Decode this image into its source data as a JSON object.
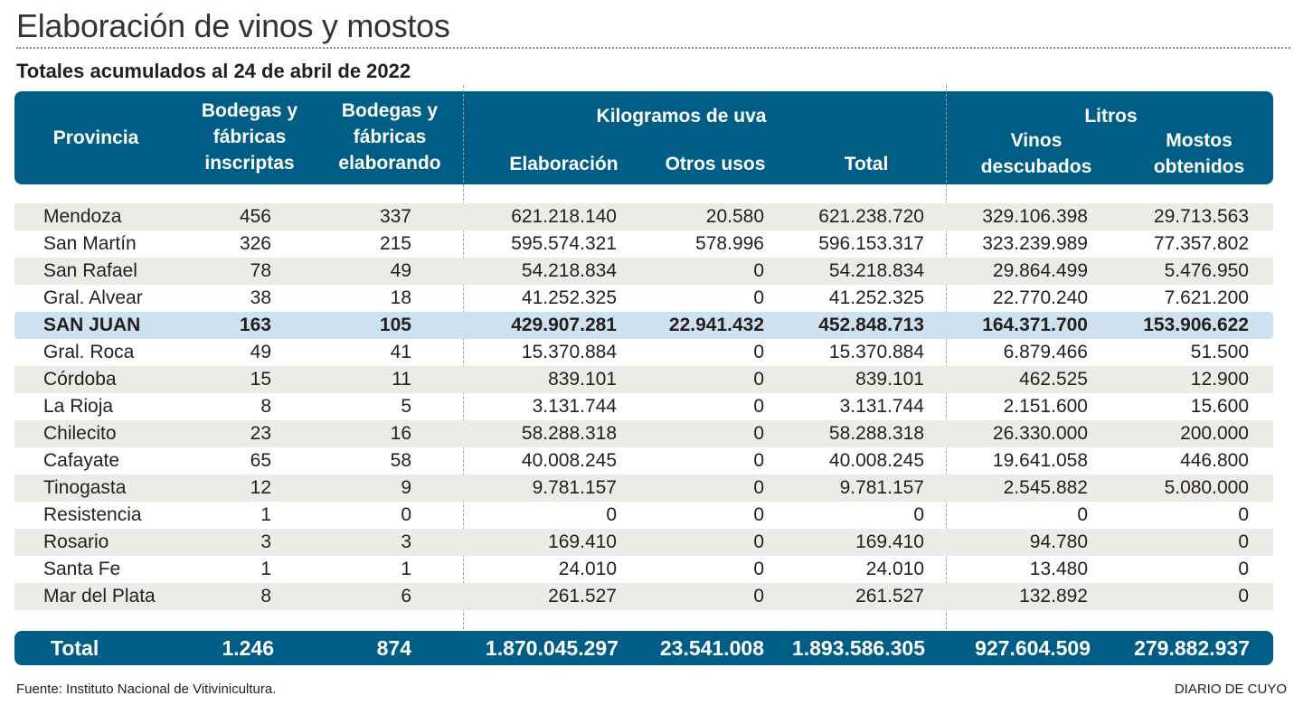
{
  "title": "Elaboración de vinos y mostos",
  "subtitle": "Totales acumulados al 24 de abril de 2022",
  "header": {
    "provincia": "Provincia",
    "bodegas_inscriptas": [
      "Bodegas y",
      "fábricas",
      "inscriptas"
    ],
    "bodegas_elaborando": [
      "Bodegas y",
      "fábricas",
      "elaborando"
    ],
    "kg_group": "Kilogramos de uva",
    "elaboracion": "Elaboración",
    "otros_usos": "Otros usos",
    "total": "Total",
    "litros_group": "Litros",
    "vinos": [
      "Vinos",
      "descubados"
    ],
    "mostos": [
      "Mostos",
      "obtenidos"
    ]
  },
  "rows": [
    {
      "provincia": "Mendoza",
      "inscriptas": "456",
      "elaborando": "337",
      "elaboracion": "621.218.140",
      "otros": "20.580",
      "total": "621.238.720",
      "vinos": "329.106.398",
      "mostos": "29.713.563"
    },
    {
      "provincia": "San Martín",
      "inscriptas": "326",
      "elaborando": "215",
      "elaboracion": "595.574.321",
      "otros": "578.996",
      "total": "596.153.317",
      "vinos": "323.239.989",
      "mostos": "77.357.802"
    },
    {
      "provincia": "San Rafael",
      "inscriptas": "78",
      "elaborando": "49",
      "elaboracion": "54.218.834",
      "otros": "0",
      "total": "54.218.834",
      "vinos": "29.864.499",
      "mostos": "5.476.950"
    },
    {
      "provincia": "Gral. Alvear",
      "inscriptas": "38",
      "elaborando": "18",
      "elaboracion": "41.252.325",
      "otros": "0",
      "total": "41.252.325",
      "vinos": "22.770.240",
      "mostos": "7.621.200"
    },
    {
      "provincia": "SAN JUAN",
      "inscriptas": "163",
      "elaborando": "105",
      "elaboracion": "429.907.281",
      "otros": "22.941.432",
      "total": "452.848.713",
      "vinos": "164.371.700",
      "mostos": "153.906.622",
      "highlight": true
    },
    {
      "provincia": "Gral. Roca",
      "inscriptas": "49",
      "elaborando": "41",
      "elaboracion": "15.370.884",
      "otros": "0",
      "total": "15.370.884",
      "vinos": "6.879.466",
      "mostos": "51.500"
    },
    {
      "provincia": "Córdoba",
      "inscriptas": "15",
      "elaborando": "11",
      "elaboracion": "839.101",
      "otros": "0",
      "total": "839.101",
      "vinos": "462.525",
      "mostos": "12.900"
    },
    {
      "provincia": "La Rioja",
      "inscriptas": "8",
      "elaborando": "5",
      "elaboracion": "3.131.744",
      "otros": "0",
      "total": "3.131.744",
      "vinos": "2.151.600",
      "mostos": "15.600"
    },
    {
      "provincia": "Chilecito",
      "inscriptas": "23",
      "elaborando": "16",
      "elaboracion": "58.288.318",
      "otros": "0",
      "total": "58.288.318",
      "vinos": "26.330.000",
      "mostos": "200.000"
    },
    {
      "provincia": "Cafayate",
      "inscriptas": "65",
      "elaborando": "58",
      "elaboracion": "40.008.245",
      "otros": "0",
      "total": "40.008.245",
      "vinos": "19.641.058",
      "mostos": "446.800"
    },
    {
      "provincia": "Tinogasta",
      "inscriptas": "12",
      "elaborando": "9",
      "elaboracion": "9.781.157",
      "otros": "0",
      "total": "9.781.157",
      "vinos": "2.545.882",
      "mostos": "5.080.000"
    },
    {
      "provincia": "Resistencia",
      "inscriptas": "1",
      "elaborando": "0",
      "elaboracion": "0",
      "otros": "0",
      "total": "0",
      "vinos": "0",
      "mostos": "0"
    },
    {
      "provincia": "Rosario",
      "inscriptas": "3",
      "elaborando": "3",
      "elaboracion": "169.410",
      "otros": "0",
      "total": "169.410",
      "vinos": "94.780",
      "mostos": "0"
    },
    {
      "provincia": "Santa Fe",
      "inscriptas": "1",
      "elaborando": "1",
      "elaboracion": "24.010",
      "otros": "0",
      "total": "24.010",
      "vinos": "13.480",
      "mostos": "0"
    },
    {
      "provincia": "Mar del Plata",
      "inscriptas": "8",
      "elaborando": "6",
      "elaboracion": "261.527",
      "otros": "0",
      "total": "261.527",
      "vinos": "132.892",
      "mostos": "0"
    }
  ],
  "totals": {
    "label": "Total",
    "inscriptas": "1.246",
    "elaborando": "874",
    "elaboracion": "1.870.045.297",
    "otros": "23.541.008",
    "total": "1.893.586.305",
    "vinos": "927.604.509",
    "mostos": "279.882.937"
  },
  "source": "Fuente: Instituto Nacional de Vitivinicultura.",
  "brand": "DIARIO DE CUYO",
  "colors": {
    "header_bg": "#005e86",
    "stripe": "#ecebe7",
    "highlight": "#cfe0ee"
  }
}
